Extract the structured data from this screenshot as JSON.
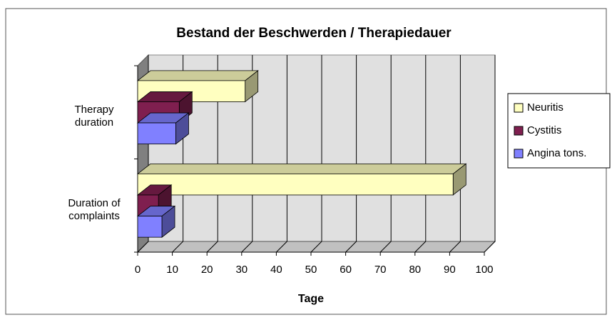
{
  "chart_data": {
    "type": "bar",
    "orientation": "horizontal",
    "three_d": true,
    "title": "Bestand der Beschwerden / Therapiedauer",
    "x_label": "Tage",
    "categories": [
      "Duration of complaints",
      "Therapy duration"
    ],
    "series": [
      {
        "name": "Neuritis",
        "color": "#ffffc0",
        "values": [
          91,
          31
        ]
      },
      {
        "name": "Cystitis",
        "color": "#7f1f4f",
        "values": [
          6,
          12
        ]
      },
      {
        "name": "Angina tons.",
        "color": "#8080ff",
        "values": [
          7,
          11
        ]
      }
    ],
    "xlim": [
      0,
      100
    ],
    "xticks": [
      0,
      10,
      20,
      30,
      40,
      50,
      60,
      70,
      80,
      90,
      100
    ],
    "grid": true,
    "legend": "right"
  }
}
